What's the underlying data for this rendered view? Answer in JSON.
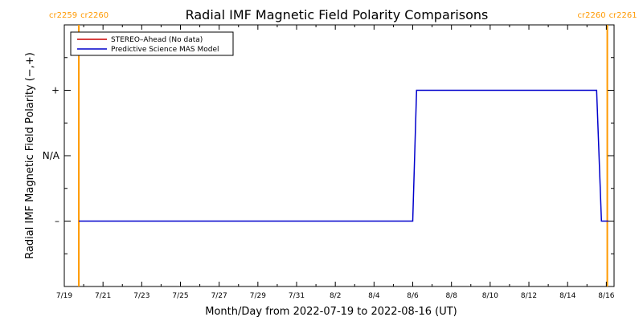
{
  "chart_data": {
    "type": "line",
    "title": "Radial IMF Magnetic Field Polarity Comparisons",
    "xlabel": "Month/Day from 2022-07-19 to 2022-08-16 (UT)",
    "ylabel": "Radial IMF Magnetic Field Polarity (−,+)",
    "x_tick_labels": [
      "7/19",
      "7/21",
      "7/23",
      "7/25",
      "7/27",
      "7/29",
      "7/31",
      "8/2",
      "8/4",
      "8/6",
      "8/8",
      "8/10",
      "8/12",
      "8/14",
      "8/16"
    ],
    "xlim_days": [
      0,
      28.4
    ],
    "y_categories": [
      {
        "label": "+",
        "value": 1
      },
      {
        "label": "N/A",
        "value": 0
      },
      {
        "label": "–",
        "value": -1
      }
    ],
    "ylim": [
      -2,
      2
    ],
    "carrington_boundaries": [
      {
        "day": 0.75,
        "left_label": "cr2259",
        "right_label": "cr2260"
      },
      {
        "day": 28.05,
        "left_label": "cr2260",
        "right_label": "cr2261"
      }
    ],
    "legend": {
      "placement": "top-left",
      "entries": [
        {
          "name": "STEREO–Ahead (No data)",
          "color": "#cc0000"
        },
        {
          "name": "Predictive Science MAS Model",
          "color": "#0000cc"
        }
      ]
    },
    "series": [
      {
        "name": "Predictive Science MAS Model",
        "color": "#0000cc",
        "points": [
          [
            0.75,
            -1
          ],
          [
            18.0,
            -1
          ],
          [
            18.2,
            1
          ],
          [
            27.5,
            1
          ],
          [
            27.75,
            -1
          ],
          [
            28.1,
            -1
          ]
        ]
      }
    ],
    "colors": {
      "boundary": "#ff9900",
      "axes": "#000000"
    }
  }
}
